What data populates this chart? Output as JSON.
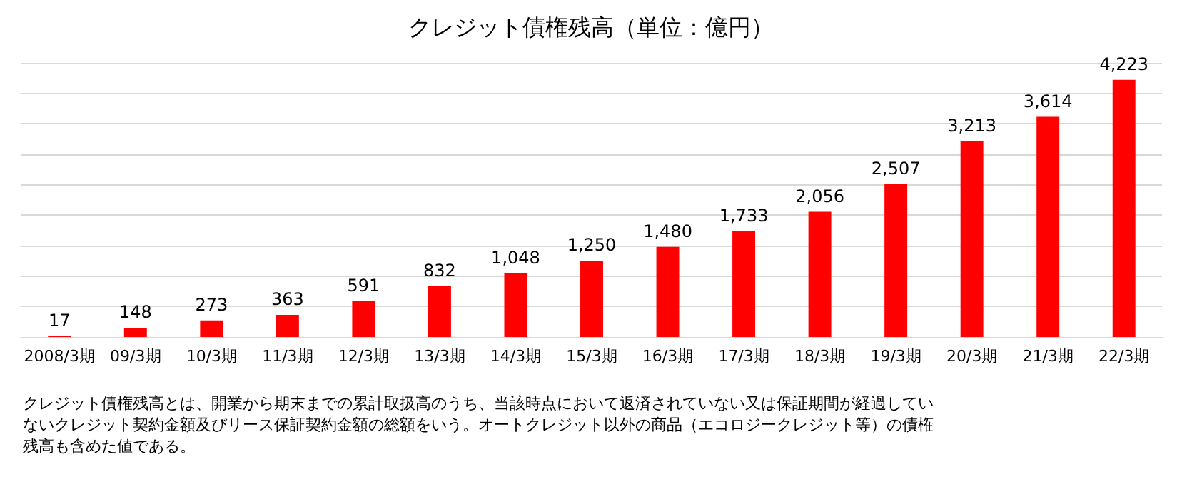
{
  "chart_data": {
    "type": "bar",
    "title": "クレジット債権残高（単位：億円）",
    "categories": [
      "2008/3期",
      "09/3期",
      "10/3期",
      "11/3期",
      "12/3期",
      "13/3期",
      "14/3期",
      "15/3期",
      "16/3期",
      "17/3期",
      "18/3期",
      "19/3期",
      "20/3期",
      "21/3期",
      "22/3期"
    ],
    "values": [
      17,
      148,
      273,
      363,
      591,
      832,
      1048,
      1250,
      1480,
      1733,
      2056,
      2507,
      3213,
      3614,
      4223
    ],
    "value_labels": [
      "17",
      "148",
      "273",
      "363",
      "591",
      "832",
      "1,048",
      "1,250",
      "1,480",
      "1,733",
      "2,056",
      "2,507",
      "3,213",
      "3,614",
      "4,223"
    ],
    "color": "#ff0000",
    "ylim": [
      0,
      4500
    ],
    "yticks": [
      {
        "value": 0,
        "label": null
      },
      {
        "value": 500,
        "label": null
      },
      {
        "value": 1000,
        "label": null
      },
      {
        "value": 1500,
        "label": null
      },
      {
        "value": 2000,
        "label": null
      },
      {
        "value": 2500,
        "label": null
      },
      {
        "value": 3000,
        "label": null
      },
      {
        "value": 3500,
        "label": null
      },
      {
        "value": 4000,
        "label": null
      },
      {
        "value": 4500,
        "label": null
      }
    ],
    "tick_labels": "x",
    "grid": "y",
    "annotations": [
      "クレジット債権残高とは、開業から期末までの累計取扱高のうち、当該時点において返済されていない又は保証期間が経過していないクレジット契約金額及びリース保証契約金額の総額をいう。オートクレジット以外の商品（エコロジークレジット等）の債権残高も含めた値である。"
    ]
  }
}
